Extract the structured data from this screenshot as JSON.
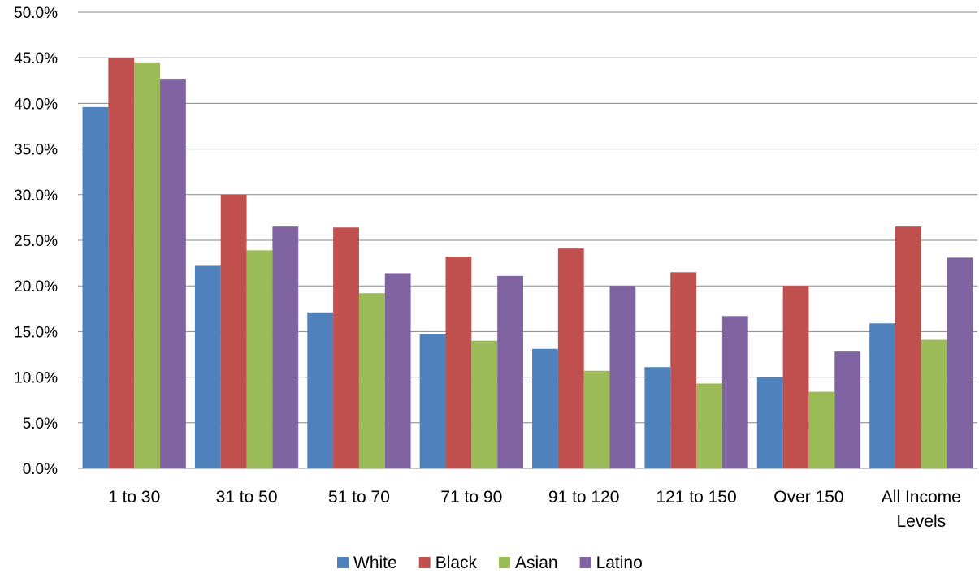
{
  "chart_data": {
    "type": "bar",
    "title": "",
    "xlabel": "",
    "ylabel": "",
    "categories": [
      "1 to 30",
      "31 to 50",
      "51 to 70",
      "71 to 90",
      "91 to 120",
      "121 to 150",
      "Over 150",
      "All Income Levels"
    ],
    "category_lines": [
      [
        "1 to 30"
      ],
      [
        "31 to 50"
      ],
      [
        "51 to 70"
      ],
      [
        "71 to 90"
      ],
      [
        "91 to 120"
      ],
      [
        "121 to 150"
      ],
      [
        "Over 150"
      ],
      [
        "All Income",
        "Levels"
      ]
    ],
    "series": [
      {
        "name": "White",
        "color": "#4F81BD",
        "values": [
          39.6,
          22.2,
          17.1,
          14.7,
          13.1,
          11.1,
          10.0,
          15.9
        ]
      },
      {
        "name": "Black",
        "color": "#C0504D",
        "values": [
          45.0,
          30.0,
          26.4,
          23.2,
          24.1,
          21.5,
          20.0,
          26.5
        ]
      },
      {
        "name": "Asian",
        "color": "#9BBB59",
        "values": [
          44.5,
          23.9,
          19.2,
          14.0,
          10.7,
          9.3,
          8.4,
          14.1
        ]
      },
      {
        "name": "Latino",
        "color": "#8064A2",
        "values": [
          42.7,
          26.5,
          21.4,
          21.1,
          20.0,
          16.7,
          12.8,
          23.1
        ]
      }
    ],
    "ylim": [
      0,
      50
    ],
    "yticks": [
      "0.0%",
      "5.0%",
      "10.0%",
      "15.0%",
      "20.0%",
      "25.0%",
      "30.0%",
      "35.0%",
      "40.0%",
      "45.0%",
      "50.0%"
    ],
    "grid": true,
    "gridline_color": "#868686",
    "legend_position": "bottom"
  }
}
